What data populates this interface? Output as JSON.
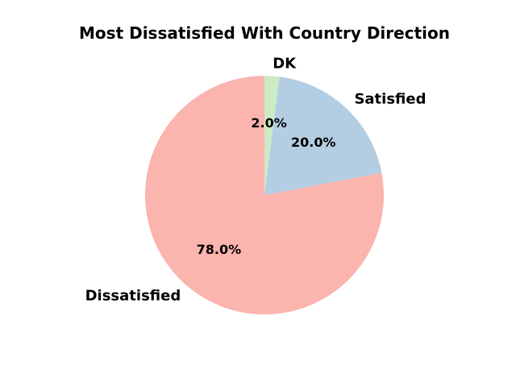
{
  "chart_data": {
    "type": "pie",
    "title": "Most Dissatisfied With Country Direction",
    "slices": [
      {
        "label": "Dissatisfied",
        "value": 78.0,
        "pct_label": "78.0%",
        "color": "#fbb4ae"
      },
      {
        "label": "Satisfied",
        "value": 20.0,
        "pct_label": "20.0%",
        "color": "#b3cde3"
      },
      {
        "label": "DK",
        "value": 2.0,
        "pct_label": "2.0%",
        "color": "#ccebc5"
      }
    ],
    "start_angle_deg": 90,
    "direction": "counterclockwise",
    "legend": "none"
  }
}
